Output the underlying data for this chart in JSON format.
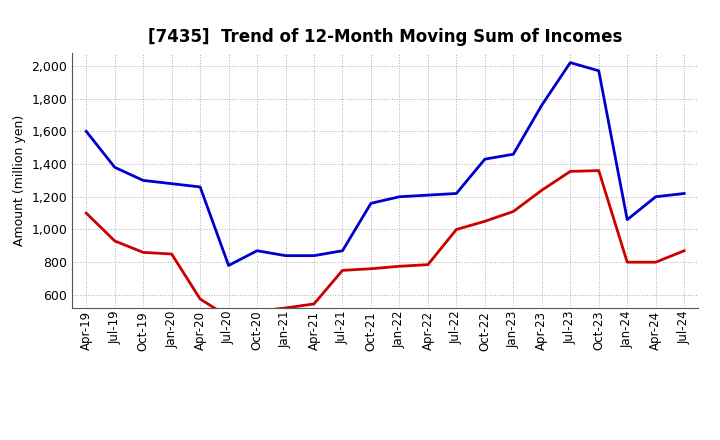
{
  "title": "[7435]  Trend of 12-Month Moving Sum of Incomes",
  "ylabel": "Amount (million yen)",
  "background_color": "#ffffff",
  "plot_background_color": "#ffffff",
  "grid_color": "#999999",
  "line_color_ordinary": "#0000cc",
  "line_color_net": "#cc0000",
  "ylim": [
    520,
    2080
  ],
  "yticks": [
    600,
    800,
    1000,
    1200,
    1400,
    1600,
    1800,
    2000
  ],
  "x_labels": [
    "Apr-19",
    "Jul-19",
    "Oct-19",
    "Jan-20",
    "Apr-20",
    "Jul-20",
    "Oct-20",
    "Jan-21",
    "Apr-21",
    "Jul-21",
    "Oct-21",
    "Jan-22",
    "Apr-22",
    "Jul-22",
    "Oct-22",
    "Jan-23",
    "Apr-23",
    "Jul-23",
    "Oct-23",
    "Jan-24",
    "Apr-24",
    "Jul-24"
  ],
  "ordinary_income": [
    1600,
    1380,
    1300,
    1280,
    1260,
    780,
    870,
    840,
    840,
    870,
    1160,
    1200,
    1210,
    1220,
    1430,
    1460,
    1760,
    2020,
    1970,
    1060,
    1200,
    1220
  ],
  "net_income": [
    1100,
    930,
    860,
    850,
    575,
    465,
    500,
    520,
    545,
    750,
    760,
    775,
    785,
    1000,
    1050,
    1110,
    1240,
    1355,
    1360,
    800,
    800,
    870
  ]
}
